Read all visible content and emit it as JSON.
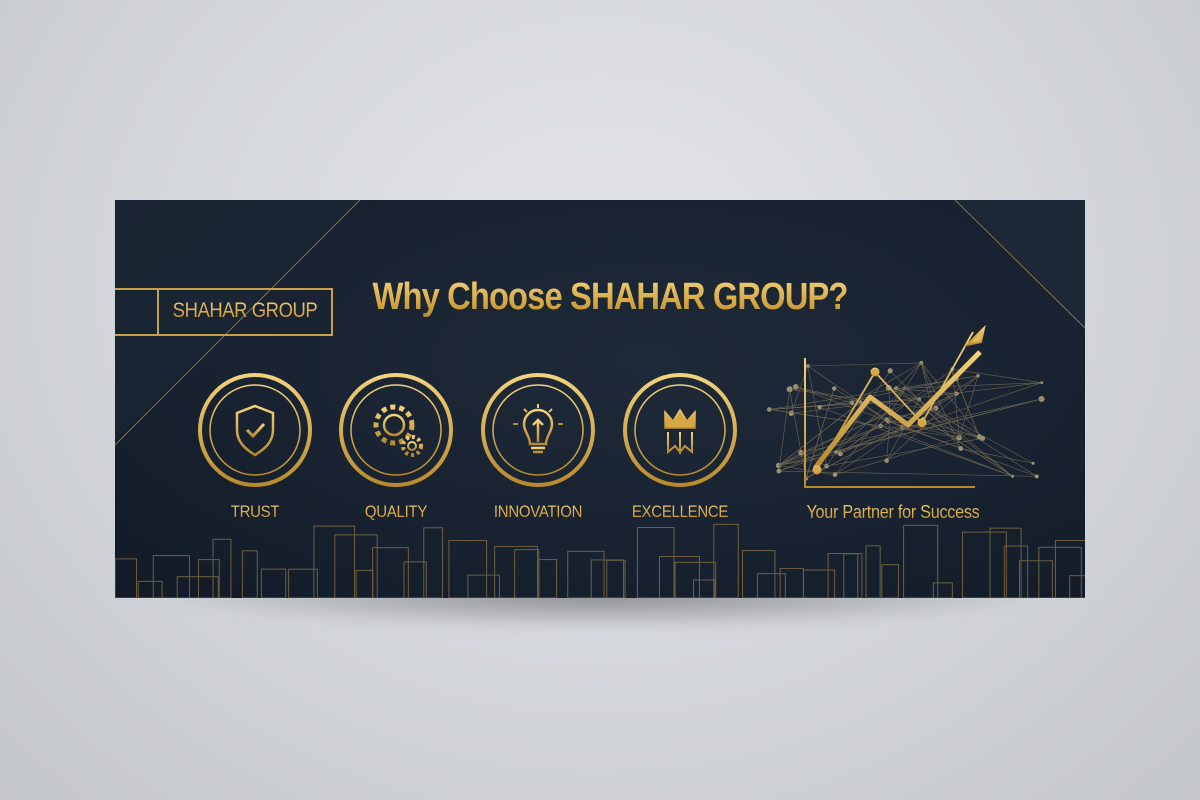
{
  "banner": {
    "brand": "SHAHAR GROUP",
    "title": "Why Choose SHAHAR GROUP?",
    "features": [
      {
        "label": "TRUST",
        "icon": "shield-check-icon"
      },
      {
        "label": "QUALITY",
        "icon": "gears-icon"
      },
      {
        "label": "INNOVATION",
        "icon": "lightbulb-icon"
      },
      {
        "label": "EXCELLENCE",
        "icon": "crown-ribbon-icon"
      }
    ],
    "tagline": "Your Partner for Success",
    "graphic": "growth-chart-icon",
    "colors": {
      "gold": "#e2b955",
      "background": "#182230",
      "page": "#d6d8db"
    }
  }
}
